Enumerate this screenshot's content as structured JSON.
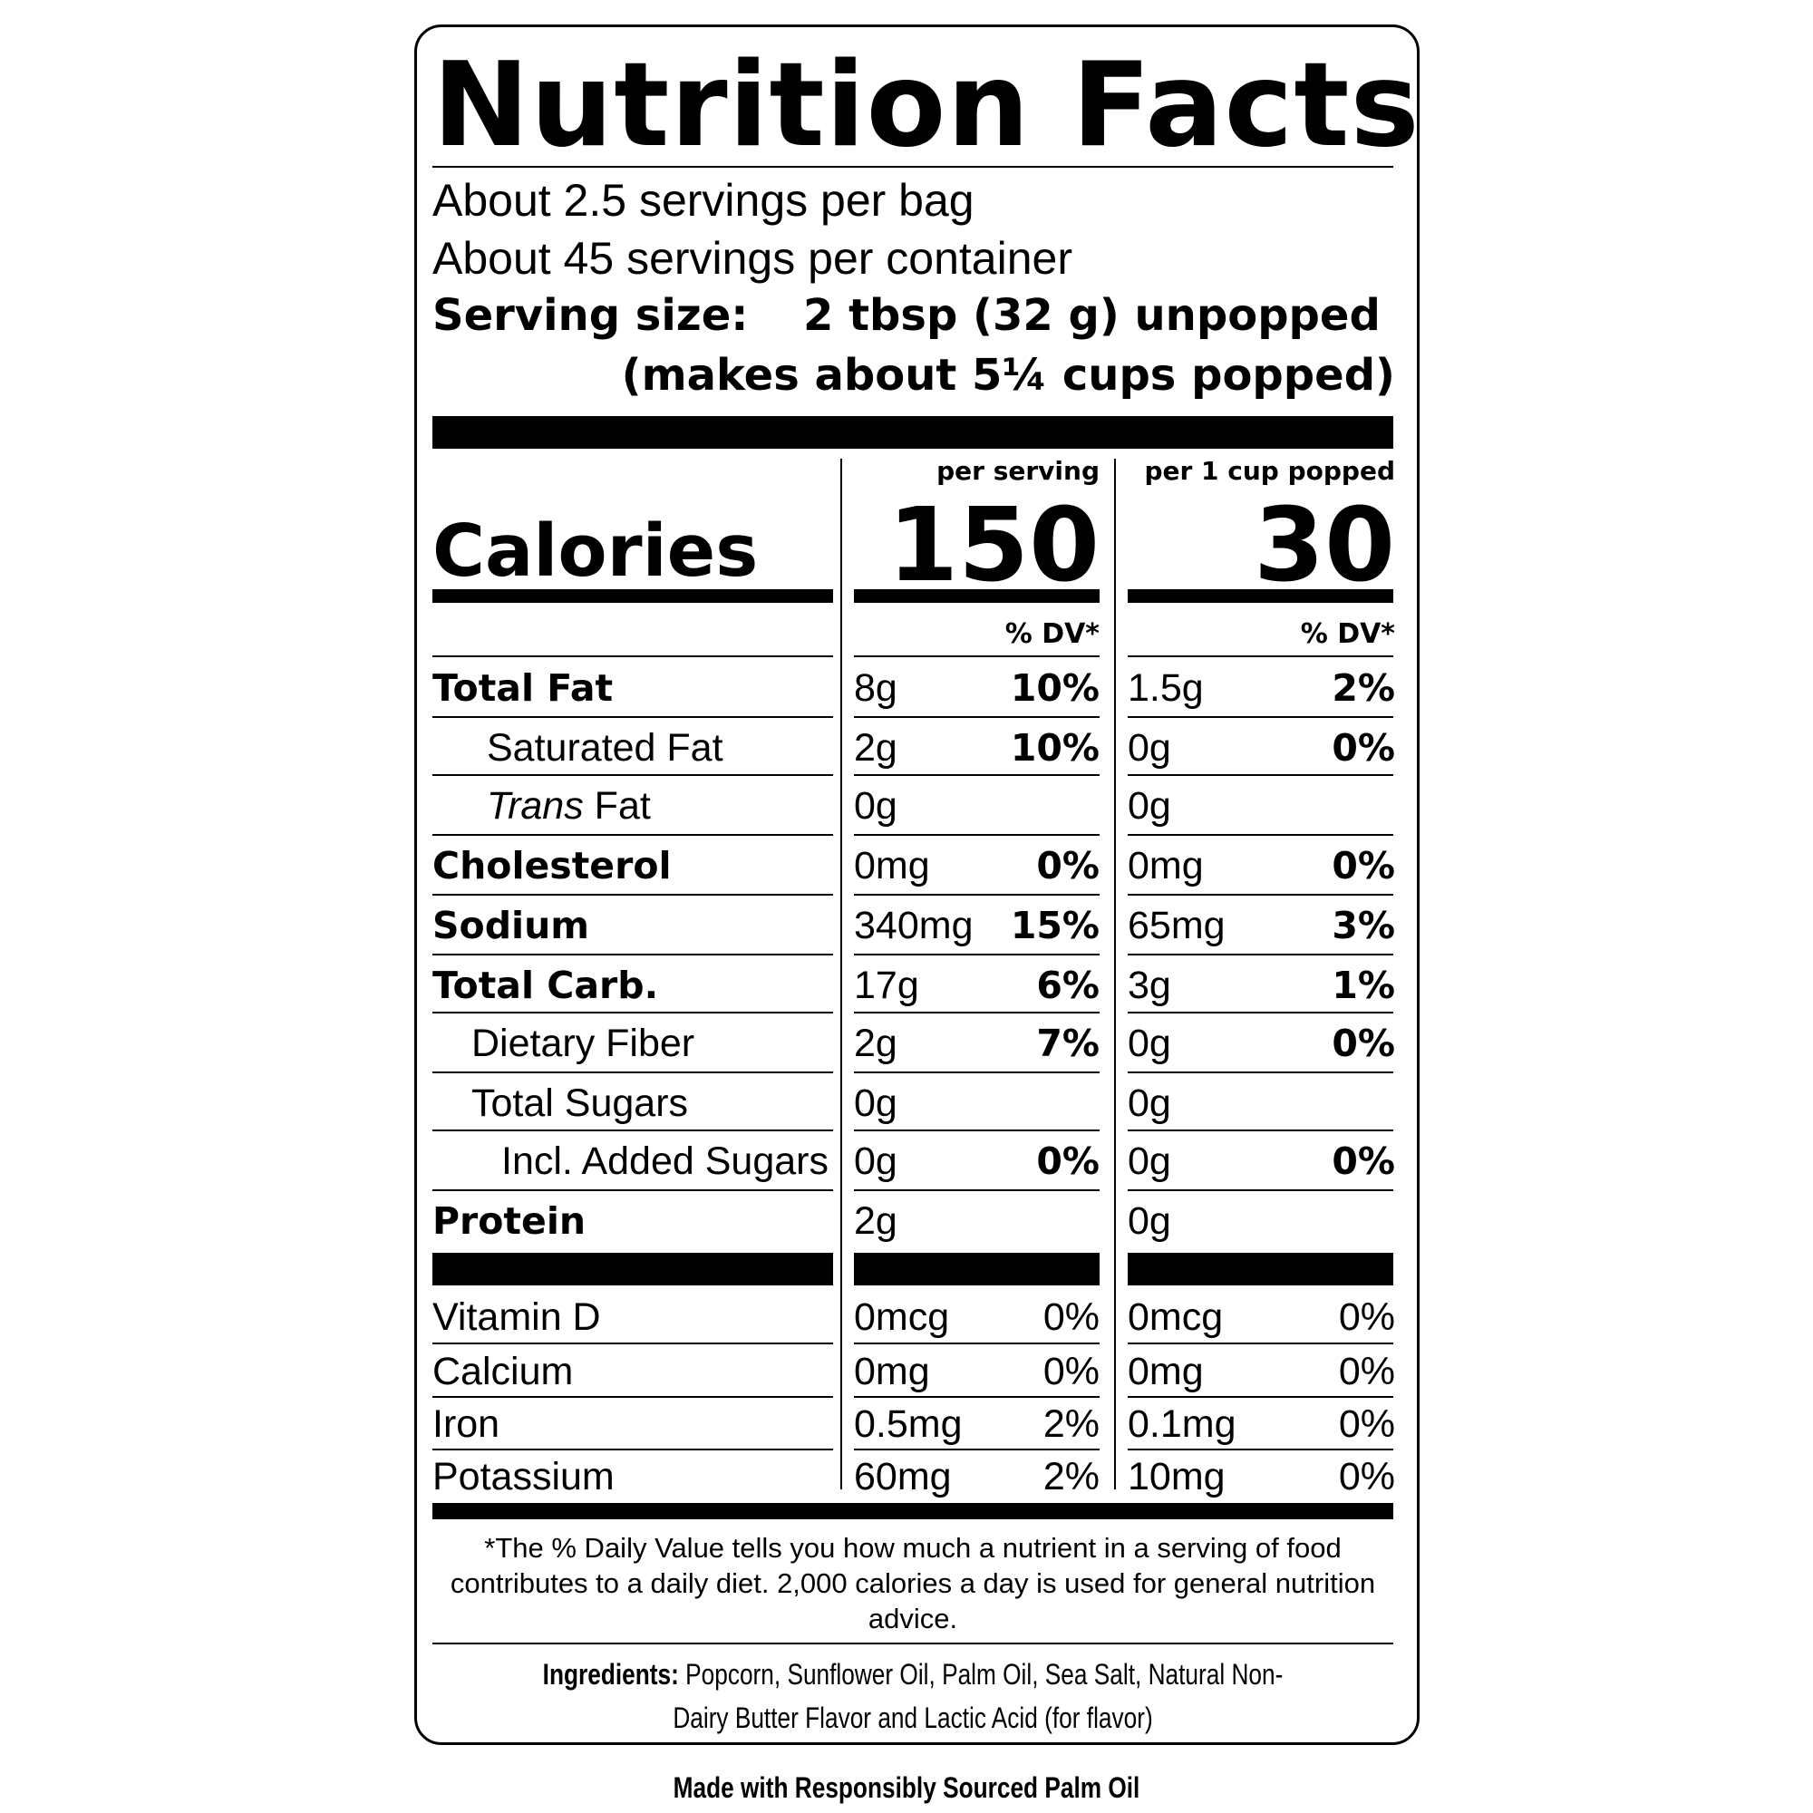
{
  "label": {
    "title": "Nutrition Facts",
    "servings_per_bag": "About 2.5 servings per bag",
    "servings_per_container": "About 45 servings per container",
    "serving_size_label": "Serving size:",
    "serving_size_value": "2 tbsp (32 g) unpopped",
    "serving_size_note": "(makes about 5¼ cups popped)",
    "column_headers": [
      "per serving",
      "per 1 cup popped"
    ],
    "calories_label": "Calories",
    "calories": [
      "150",
      "30"
    ],
    "dv_header": "% DV*",
    "nutrients": [
      {
        "label": "Total Fat",
        "s_amt": "8g",
        "s_dv": "10%",
        "c_amt": "1.5g",
        "c_dv": "2%"
      },
      {
        "label": "Saturated Fat",
        "s_amt": "2g",
        "s_dv": "10%",
        "c_amt": "0g",
        "c_dv": "0%"
      },
      {
        "label_italic": "Trans",
        "label_rest": " Fat",
        "s_amt": "0g",
        "s_dv": "",
        "c_amt": "0g",
        "c_dv": ""
      },
      {
        "label": "Cholesterol",
        "s_amt": "0mg",
        "s_dv": "0%",
        "c_amt": "0mg",
        "c_dv": "0%"
      },
      {
        "label": "Sodium",
        "s_amt": "340mg",
        "s_dv": "15%",
        "c_amt": "65mg",
        "c_dv": "3%"
      },
      {
        "label": "Total Carb.",
        "s_amt": "17g",
        "s_dv": "6%",
        "c_amt": "3g",
        "c_dv": "1%"
      },
      {
        "label": "Dietary Fiber",
        "s_amt": "2g",
        "s_dv": "7%",
        "c_amt": "0g",
        "c_dv": "0%"
      },
      {
        "label": "Total Sugars",
        "s_amt": "0g",
        "s_dv": "",
        "c_amt": "0g",
        "c_dv": ""
      },
      {
        "label": "Incl. Added Sugars",
        "s_amt": "0g",
        "s_dv": "0%",
        "c_amt": "0g",
        "c_dv": "0%"
      },
      {
        "label": "Protein",
        "s_amt": "2g",
        "s_dv": "",
        "c_amt": "0g",
        "c_dv": ""
      }
    ],
    "vitamins": [
      {
        "label": "Vitamin D",
        "s_amt": "0mcg",
        "s_dv": "0%",
        "c_amt": "0mcg",
        "c_dv": "0%"
      },
      {
        "label": "Calcium",
        "s_amt": "0mg",
        "s_dv": "0%",
        "c_amt": "0mg",
        "c_dv": "0%"
      },
      {
        "label": "Iron",
        "s_amt": "0.5mg",
        "s_dv": "2%",
        "c_amt": "0.1mg",
        "c_dv": "0%"
      },
      {
        "label": "Potassium",
        "s_amt": "60mg",
        "s_dv": "2%",
        "c_amt": "10mg",
        "c_dv": "0%"
      }
    ],
    "footnote": "*The % Daily Value tells you how much a nutrient in a serving of food contributes to a daily diet. 2,000 calories a day is used for general nutrition advice.",
    "ingredients_label": "Ingredients:",
    "ingredients_text": "Popcorn, Sunflower Oil, Palm Oil, Sea Salt, Natural Non-Dairy Butter Flavor and Lactic Acid (for flavor)"
  },
  "palm_oil_note": "Made with Responsibly Sourced Palm Oil"
}
